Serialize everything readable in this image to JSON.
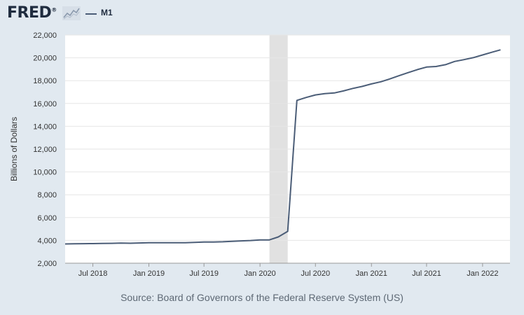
{
  "header": {
    "logo_text": "FRED",
    "logo_mark": "®",
    "logo_icon": "chart-graph-icon",
    "legend": "M1"
  },
  "source": "Source: Board of Governors of the Federal Reserve System (US)",
  "colors": {
    "background": "#e1e9f0",
    "plot_background": "#ffffff",
    "line": "#4b5d77",
    "recession": "#e1e1e1",
    "grid": "#e6e6e6"
  },
  "chart_data": {
    "type": "line",
    "title": "",
    "xlabel": "",
    "ylabel": "Billions of Dollars",
    "ylim": [
      2000,
      22000
    ],
    "xlim": [
      "2018-04-01",
      "2022-04-01"
    ],
    "yticks": [
      2000,
      4000,
      6000,
      8000,
      10000,
      12000,
      14000,
      16000,
      18000,
      20000,
      22000
    ],
    "ytick_labels": [
      "2,000",
      "4,000",
      "6,000",
      "8,000",
      "10,000",
      "12,000",
      "14,000",
      "16,000",
      "18,000",
      "20,000",
      "22,000"
    ],
    "xticks": [
      "2018-07-01",
      "2019-01-01",
      "2019-07-01",
      "2020-01-01",
      "2020-07-01",
      "2021-01-01",
      "2021-07-01",
      "2022-01-01"
    ],
    "xtick_labels": [
      "Jul 2018",
      "Jan 2019",
      "Jul 2019",
      "Jan 2020",
      "Jul 2020",
      "Jan 2021",
      "Jul 2021",
      "Jan 2022"
    ],
    "grid": true,
    "legend_position": "top-left",
    "recession_shading": [
      {
        "start": "2020-02-01",
        "end": "2020-04-01"
      }
    ],
    "series": [
      {
        "name": "M1",
        "x": [
          "2018-04-01",
          "2018-05-01",
          "2018-06-01",
          "2018-07-01",
          "2018-08-01",
          "2018-09-01",
          "2018-10-01",
          "2018-11-01",
          "2018-12-01",
          "2019-01-01",
          "2019-02-01",
          "2019-03-01",
          "2019-04-01",
          "2019-05-01",
          "2019-06-01",
          "2019-07-01",
          "2019-08-01",
          "2019-09-01",
          "2019-10-01",
          "2019-11-01",
          "2019-12-01",
          "2020-01-01",
          "2020-02-01",
          "2020-03-01",
          "2020-04-01",
          "2020-05-01",
          "2020-06-01",
          "2020-07-01",
          "2020-08-01",
          "2020-09-01",
          "2020-10-01",
          "2020-11-01",
          "2020-12-01",
          "2021-01-01",
          "2021-02-01",
          "2021-03-01",
          "2021-04-01",
          "2021-05-01",
          "2021-06-01",
          "2021-07-01",
          "2021-08-01",
          "2021-09-01",
          "2021-10-01",
          "2021-11-01",
          "2021-12-01",
          "2022-01-01",
          "2022-02-01",
          "2022-03-01"
        ],
        "values": [
          3690,
          3700,
          3710,
          3720,
          3730,
          3740,
          3760,
          3750,
          3770,
          3800,
          3790,
          3800,
          3790,
          3800,
          3820,
          3850,
          3860,
          3880,
          3920,
          3960,
          3990,
          4040,
          4040,
          4300,
          4790,
          16270,
          16530,
          16750,
          16860,
          16920,
          17100,
          17320,
          17490,
          17710,
          17900,
          18140,
          18430,
          18700,
          18970,
          19190,
          19240,
          19400,
          19680,
          19840,
          20010,
          20250,
          20490,
          20700
        ]
      }
    ]
  }
}
